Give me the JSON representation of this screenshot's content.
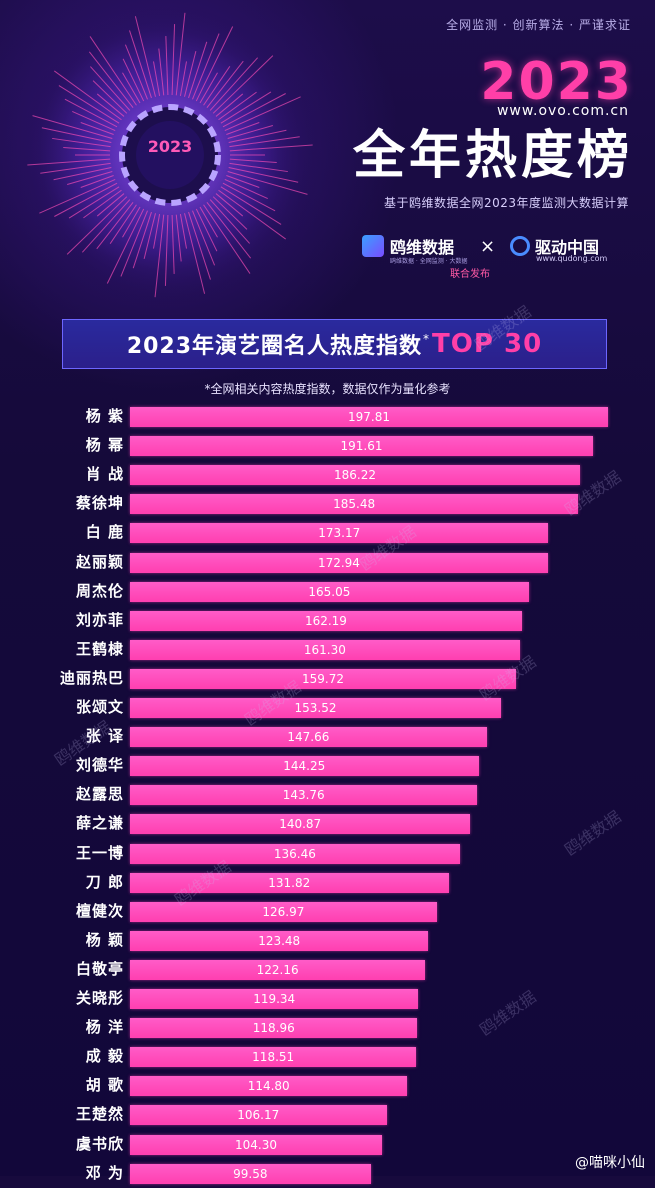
{
  "header": {
    "tagline": "全网监测 · 创新算法 · 严谨求证",
    "year": "2023",
    "site": "www.ovo.com.cn",
    "title": "全年热度榜",
    "subtitle": "基于鸥维数据全网2023年度监测大数据计算",
    "badge_year": "2023"
  },
  "logos": {
    "partner1": "鸥维数据",
    "partner1_tiny": "鸥维数据 · 全网监测 · 大数据",
    "times": "×",
    "partner2": "驱动中国",
    "partner2_url": "www.qudong.com",
    "joint": "联合发布"
  },
  "banner": {
    "main": "2023年演艺圈名人热度指数",
    "star": "*",
    "top": "TOP 30"
  },
  "note": "*全网相关内容热度指数，数据仅作为量化参考",
  "watermark": "鸥维数据",
  "footer": "@喵咪小仙",
  "chart_data": {
    "type": "bar",
    "orientation": "horizontal",
    "title": "2023年演艺圈名人热度指数*TOP 30",
    "categories": [
      "杨 紫",
      "杨 幂",
      "肖 战",
      "蔡徐坤",
      "白 鹿",
      "赵丽颖",
      "周杰伦",
      "刘亦菲",
      "王鹤棣",
      "迪丽热巴",
      "张颂文",
      "张 译",
      "刘德华",
      "赵露思",
      "薛之谦",
      "王一博",
      "刀 郎",
      "檀健次",
      "杨 颖",
      "白敬亭",
      "关晓彤",
      "杨 洋",
      "成 毅",
      "胡 歌",
      "王楚然",
      "虞书欣",
      "邓 为"
    ],
    "values": [
      197.81,
      191.61,
      186.22,
      185.48,
      173.17,
      172.94,
      165.05,
      162.19,
      161.3,
      159.72,
      153.52,
      147.66,
      144.25,
      143.76,
      140.87,
      136.46,
      131.82,
      126.97,
      123.48,
      122.16,
      119.34,
      118.96,
      118.51,
      114.8,
      106.17,
      104.3,
      99.58
    ],
    "value_labels": [
      "197.81",
      "191.61",
      "186.22",
      "185.48",
      "173.17",
      "172.94",
      "165.05",
      "162.19",
      "161.30",
      "159.72",
      "153.52",
      "147.66",
      "144.25",
      "143.76",
      "140.87",
      "136.46",
      "131.82",
      "126.97",
      "123.48",
      "122.16",
      "119.34",
      "118.96",
      "118.51",
      "114.80",
      "106.17",
      "104.30",
      "99.58"
    ],
    "bar_color": "#ff3fb0",
    "grid": false
  }
}
